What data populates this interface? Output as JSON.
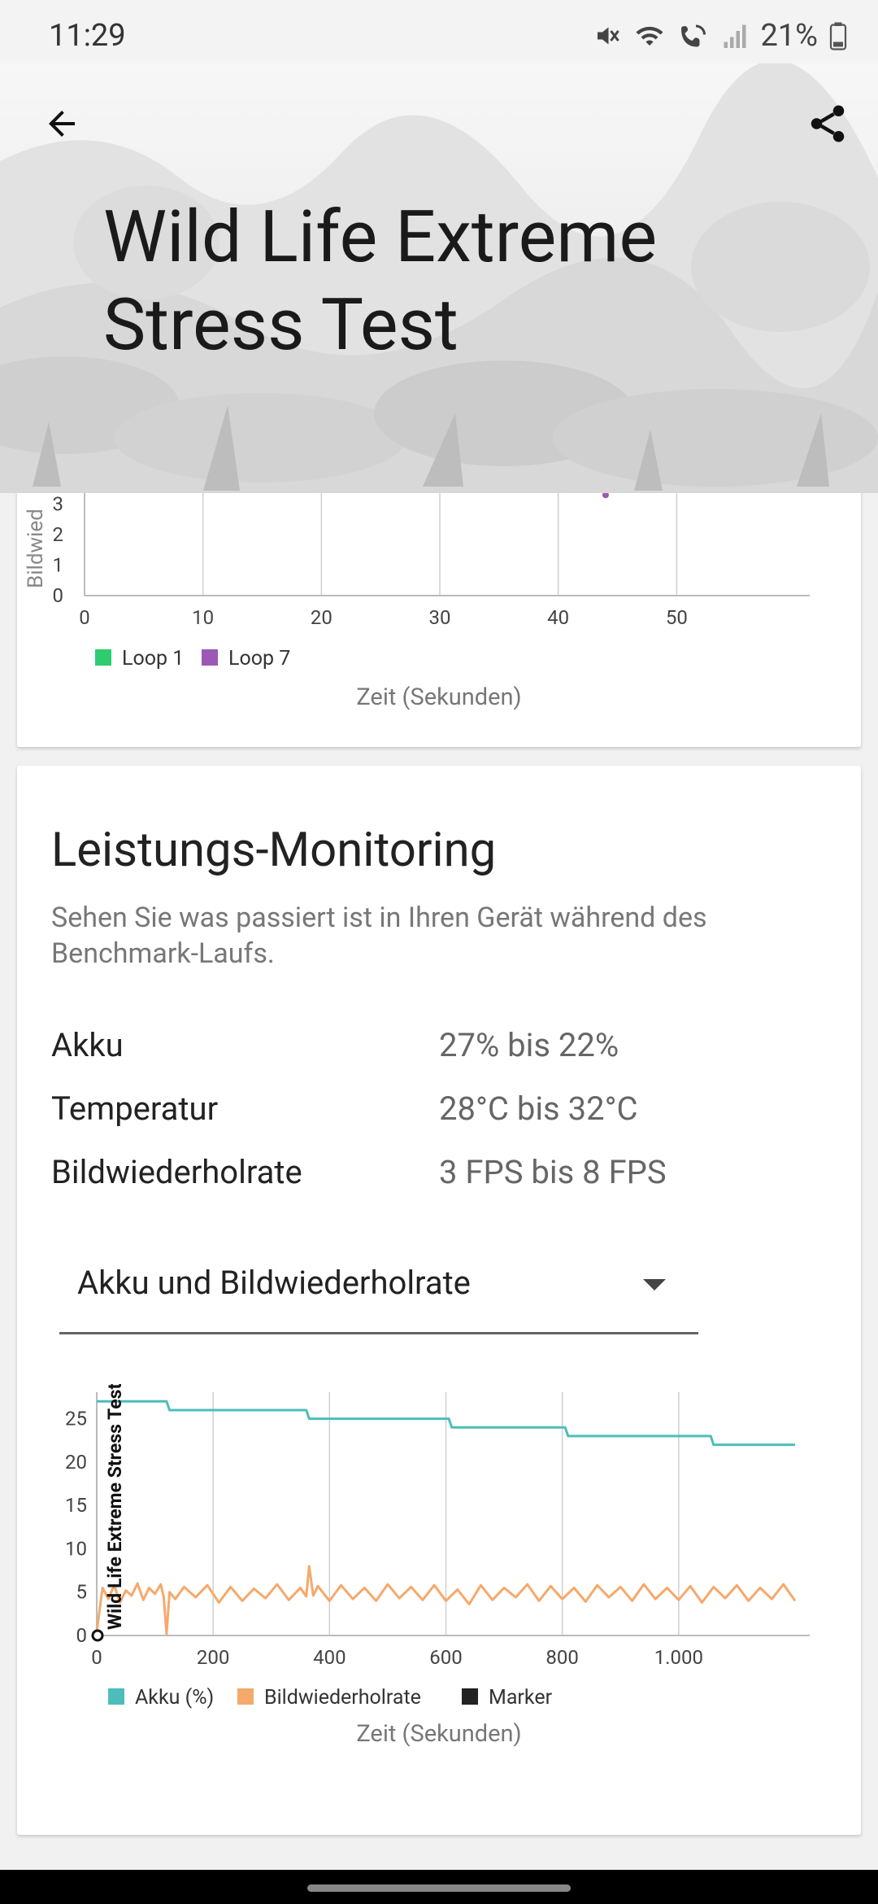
{
  "status_bar": {
    "time": "11:29",
    "battery": "21%",
    "icons": [
      "mute-icon",
      "wifi-icon",
      "wifi-calling-icon",
      "signal-icon",
      "battery-icon"
    ]
  },
  "header": {
    "title": "Wild Life Extreme Stress Test",
    "back_icon": "arrow-left-icon",
    "share_icon": "share-icon"
  },
  "top_chart": {
    "y_axis_label": "Bildwied",
    "x_axis_label": "Zeit (Sekunden)",
    "legend": [
      {
        "label": "Loop 1",
        "color": "#2ecc71"
      },
      {
        "label": "Loop 7",
        "color": "#9b59b6"
      }
    ],
    "chart_data": {
      "type": "scatter",
      "x_ticks": [
        "0",
        "10",
        "20",
        "30",
        "40",
        "50"
      ],
      "y_ticks": [
        "0",
        "1",
        "2",
        "3"
      ],
      "xlabel": "Zeit (Sekunden)",
      "ylabel": "Bildwied",
      "xlim": [
        0,
        60
      ],
      "ylim": [
        0,
        3.5
      ],
      "series": [
        {
          "name": "Loop 1",
          "color": "#2ecc71",
          "x": [],
          "y": []
        },
        {
          "name": "Loop 7",
          "color": "#9b59b6",
          "x": [
            44
          ],
          "y": [
            3.3
          ]
        }
      ]
    }
  },
  "monitoring": {
    "title": "Leistungs-Monitoring",
    "description": "Sehen Sie was passiert ist in Ihren Gerät während des Benchmark-Laufs.",
    "stats": [
      {
        "label": "Akku",
        "value": "27% bis 22%"
      },
      {
        "label": "Temperatur",
        "value": "28°C bis 32°C"
      },
      {
        "label": "Bildwiederholrate",
        "value": "3 FPS bis 8 FPS"
      }
    ],
    "dropdown": {
      "selected": "Akku und Bildwiederholrate"
    }
  },
  "bottom_chart": {
    "marker_label": "Wild Life Extreme Stress Test",
    "legend": [
      {
        "label": "Akku (%)",
        "color": "#4dbdbb"
      },
      {
        "label": "Bildwiederholrate",
        "color": "#f5a96b"
      },
      {
        "label": "Marker",
        "color": "#222222"
      }
    ],
    "chart_data": {
      "type": "line",
      "x_ticks": [
        "0",
        "200",
        "400",
        "600",
        "800",
        "1.000"
      ],
      "y_ticks": [
        "0",
        "5",
        "10",
        "15",
        "20",
        "25"
      ],
      "xlabel": "Zeit (Sekunden)",
      "xlim": [
        0,
        1200
      ],
      "ylim": [
        0,
        29
      ],
      "series": [
        {
          "name": "Akku (%)",
          "color": "#4dbdbb",
          "x": [
            0,
            120,
            125,
            360,
            365,
            605,
            610,
            805,
            810,
            1055,
            1060,
            1200
          ],
          "y": [
            27,
            27,
            26,
            26,
            25,
            25,
            24,
            24,
            23,
            23,
            22,
            22
          ]
        },
        {
          "name": "Bildwiederholrate",
          "color": "#f5a96b",
          "x": [
            0,
            10,
            20,
            30,
            40,
            50,
            60,
            70,
            80,
            90,
            100,
            110,
            115,
            120,
            125,
            135,
            150,
            170,
            190,
            210,
            230,
            250,
            270,
            290,
            310,
            330,
            350,
            360,
            365,
            372,
            380,
            400,
            420,
            440,
            460,
            480,
            500,
            520,
            540,
            560,
            580,
            600,
            620,
            640,
            660,
            680,
            700,
            720,
            740,
            760,
            780,
            800,
            820,
            840,
            860,
            880,
            900,
            920,
            940,
            960,
            980,
            1000,
            1020,
            1040,
            1060,
            1080,
            1100,
            1120,
            1140,
            1160,
            1180,
            1200
          ],
          "y": [
            0.5,
            5.5,
            4.2,
            5.8,
            3.8,
            5.2,
            4.6,
            6.0,
            4.1,
            5.5,
            4.8,
            5.9,
            4.5,
            0.2,
            5.0,
            4.2,
            5.6,
            4.4,
            5.8,
            3.8,
            5.6,
            4.0,
            5.4,
            4.3,
            5.9,
            4.1,
            5.5,
            4.5,
            8.0,
            4.6,
            5.7,
            4.0,
            5.8,
            4.2,
            5.5,
            4.0,
            5.9,
            4.3,
            5.6,
            4.1,
            5.8,
            4.0,
            5.3,
            3.6,
            5.8,
            4.1,
            5.5,
            4.4,
            5.9,
            4.0,
            5.7,
            4.2,
            5.5,
            3.9,
            5.8,
            4.4,
            5.6,
            4.0,
            5.9,
            4.2,
            5.5,
            4.1,
            5.7,
            3.8,
            5.6,
            4.3,
            5.8,
            4.0,
            5.5,
            4.2,
            5.9,
            4.0
          ]
        }
      ],
      "markers": [
        {
          "x": 0,
          "y": 0
        }
      ]
    }
  }
}
